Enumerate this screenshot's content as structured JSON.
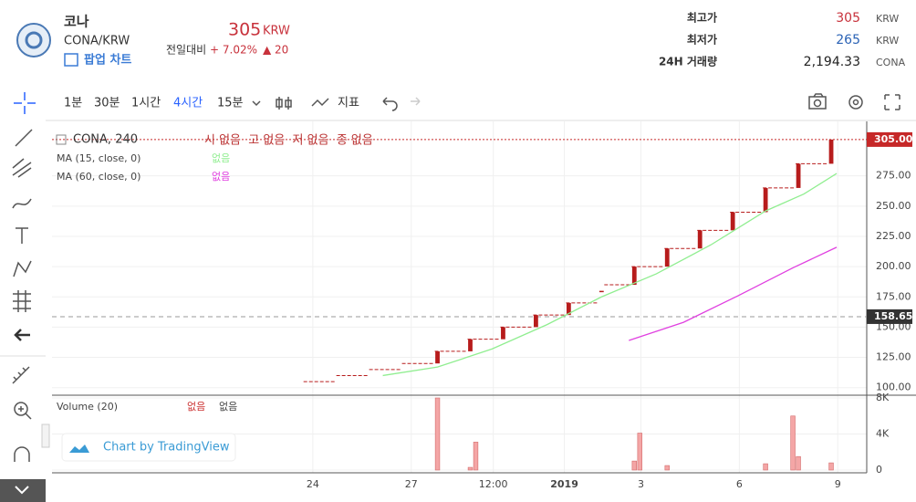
{
  "header": {
    "name": "코나",
    "pair": "CONA/KRW",
    "popup": "팝업 차트",
    "price": "305",
    "price_unit": "KRW",
    "change_label": "전일대비",
    "change_pct": "+ 7.02%",
    "change_abs": "▲ 20",
    "stats": [
      {
        "label": "최고가",
        "value": "305",
        "unit": "KRW"
      },
      {
        "label": "최저가",
        "value": "265",
        "unit": "KRW"
      },
      {
        "label": "24H 거래량",
        "value": "2,194.33",
        "unit": "CONA"
      }
    ]
  },
  "toolbar": {
    "intervals": [
      "1분",
      "30분",
      "1시간",
      "4시간",
      "15분"
    ],
    "indicators": "지표"
  },
  "chart": {
    "legend": {
      "symbol": "CONA, 240",
      "ohlc": "시 없음  고 없음  저 없음  종 없음",
      "ma15": "MA (15, close, 0)",
      "ma15_value": "없음",
      "ma60": "MA (60, close, 0)",
      "ma60_value": "없음",
      "volume": "Volume (20)",
      "volume_values": [
        "없음",
        "없음"
      ]
    },
    "watermark": "Chart by TradingView",
    "xlim": [
      -46,
      103
    ],
    "xticks": [
      {
        "value": 1.7,
        "label": "24"
      },
      {
        "value": 19.7,
        "label": "27"
      },
      {
        "value": 34.7,
        "label": "12:00"
      },
      {
        "value": 47.7,
        "label": "2019"
      },
      {
        "value": 61.7,
        "label": "3"
      },
      {
        "value": 79.7,
        "label": "6"
      },
      {
        "value": 97.7,
        "label": "9"
      }
    ],
    "ylim": [
      94.5,
      320
    ],
    "yticks": [
      {
        "value": 100,
        "label": "100.00"
      },
      {
        "value": 125,
        "label": "125.00"
      },
      {
        "value": 150,
        "label": "150.00"
      },
      {
        "value": 175,
        "label": "175.00"
      },
      {
        "value": 200,
        "label": "200.00"
      },
      {
        "value": 225,
        "label": "225.00"
      },
      {
        "value": 250,
        "label": "250.00"
      },
      {
        "value": 275,
        "label": "275.00"
      }
    ],
    "last_price": {
      "value": 305,
      "label": "305.00"
    },
    "marker_price": {
      "value": 158.65,
      "label": "158.65"
    },
    "flats": [
      {
        "from": 0,
        "to": 6,
        "price": 105
      },
      {
        "from": 6,
        "to": 12,
        "price": 110
      },
      {
        "from": 12,
        "to": 18,
        "price": 115
      },
      {
        "from": 18,
        "to": 24,
        "price": 120
      },
      {
        "from": 24,
        "to": 30,
        "price": 130
      },
      {
        "from": 30,
        "to": 36,
        "price": 140
      },
      {
        "from": 36,
        "to": 42,
        "price": 150
      },
      {
        "from": 42,
        "to": 48,
        "price": 160
      },
      {
        "from": 48,
        "to": 54,
        "price": 170
      },
      {
        "from": 55,
        "to": 60,
        "price": 185
      },
      {
        "from": 60,
        "to": 66,
        "price": 200
      },
      {
        "from": 66,
        "to": 72,
        "price": 215
      },
      {
        "from": 72,
        "to": 78,
        "price": 230
      },
      {
        "from": 78,
        "to": 84,
        "price": 245
      },
      {
        "from": 84,
        "to": 90,
        "price": 265
      },
      {
        "from": 90,
        "to": 96,
        "price": 285
      }
    ],
    "candles": [
      {
        "i": 24,
        "open": 120,
        "close": 130
      },
      {
        "i": 30,
        "open": 130,
        "close": 140
      },
      {
        "i": 36,
        "open": 140,
        "close": 150
      },
      {
        "i": 42,
        "open": 150,
        "close": 160
      },
      {
        "i": 48,
        "open": 160,
        "close": 170
      },
      {
        "i": 54,
        "open": 180,
        "close": 180
      },
      {
        "i": 60,
        "open": 185,
        "close": 200
      },
      {
        "i": 66,
        "open": 200,
        "close": 215
      },
      {
        "i": 72,
        "open": 215,
        "close": 230
      },
      {
        "i": 78,
        "open": 230,
        "close": 245
      },
      {
        "i": 84,
        "open": 245,
        "close": 265
      },
      {
        "i": 90,
        "open": 265,
        "close": 285
      },
      {
        "i": 96,
        "open": 285,
        "close": 305
      }
    ],
    "ma15": {
      "color": "#90ee90",
      "x": [
        14,
        24,
        34,
        44,
        54,
        64,
        74,
        84,
        91,
        97
      ],
      "values": [
        110,
        117,
        132,
        152,
        175,
        194,
        218,
        246,
        260,
        277
      ]
    },
    "ma60": {
      "color": "#e040e0",
      "x": [
        59,
        69,
        79,
        89,
        97
      ],
      "values": [
        139,
        154,
        176,
        199,
        216
      ]
    },
    "vlim": [
      0,
      8000
    ],
    "vticks": [
      0,
      {
        "value": 4000,
        "label": "4K"
      },
      {
        "value": 8000,
        "label": "8K"
      }
    ],
    "volume": [
      {
        "i": 24,
        "v": 8000
      },
      {
        "i": 30,
        "v": 300
      },
      {
        "i": 31,
        "v": 3100
      },
      {
        "i": 60,
        "v": 1000
      },
      {
        "i": 61,
        "v": 4100
      },
      {
        "i": 66,
        "v": 500
      },
      {
        "i": 84,
        "v": 700
      },
      {
        "i": 89,
        "v": 6000
      },
      {
        "i": 90,
        "v": 1500
      },
      {
        "i": 96,
        "v": 800
      }
    ]
  }
}
